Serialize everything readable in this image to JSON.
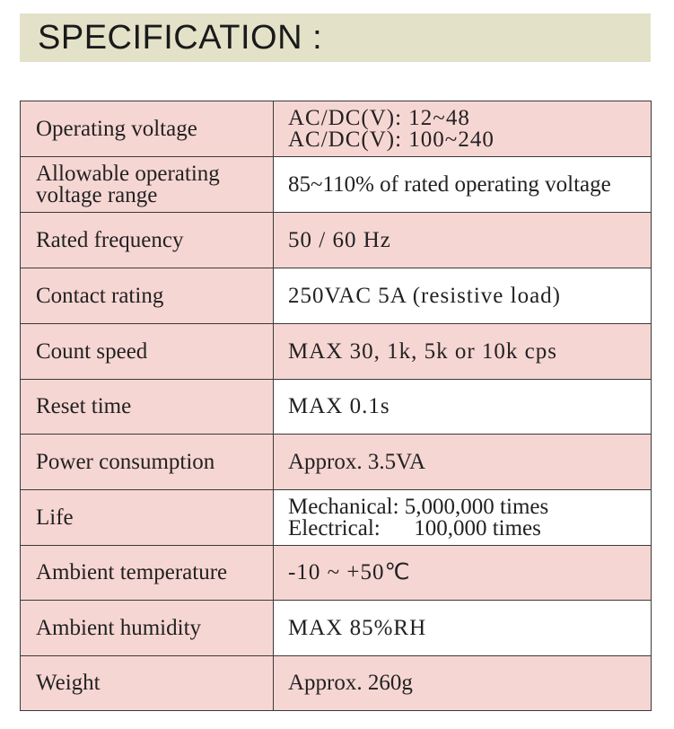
{
  "header": {
    "title": "SPECIFICATION :"
  },
  "colors": {
    "header_band": "#e3e1c8",
    "row_tint": "#f6d6d3",
    "border": "#3a3a3a"
  },
  "spec": {
    "rows": [
      {
        "label": "Operating voltage",
        "values": [
          "AC/DC(V): 12~48",
          "AC/DC(V): 100~240"
        ],
        "tinted": true
      },
      {
        "label_lines": [
          "Allowable operating",
          "voltage range"
        ],
        "values": [
          "85~110% of rated operating voltage"
        ],
        "tinted": false
      },
      {
        "label": "Rated frequency",
        "values": [
          "50 / 60 Hz"
        ],
        "tinted": true
      },
      {
        "label": "Contact rating",
        "values": [
          "250VAC 5A (resistive load)"
        ],
        "tinted": false
      },
      {
        "label": "Count speed",
        "values": [
          "MAX 30, 1k, 5k or 10k cps"
        ],
        "tinted": true
      },
      {
        "label": "Reset time",
        "values": [
          "MAX 0.1s"
        ],
        "tinted": false
      },
      {
        "label": "Power consumption",
        "values": [
          "Approx. 3.5VA"
        ],
        "tinted": true
      },
      {
        "label": "Life",
        "values": [
          "Mechanical: 5,000,000 times",
          "Electrical:      100,000 times"
        ],
        "tinted": false
      },
      {
        "label": "Ambient temperature",
        "values": [
          "-10 ~ +50℃"
        ],
        "tinted": true
      },
      {
        "label": "Ambient humidity",
        "values": [
          "MAX 85%RH"
        ],
        "tinted": false
      },
      {
        "label": "Weight",
        "values": [
          "Approx. 260g"
        ],
        "tinted": true
      }
    ]
  }
}
